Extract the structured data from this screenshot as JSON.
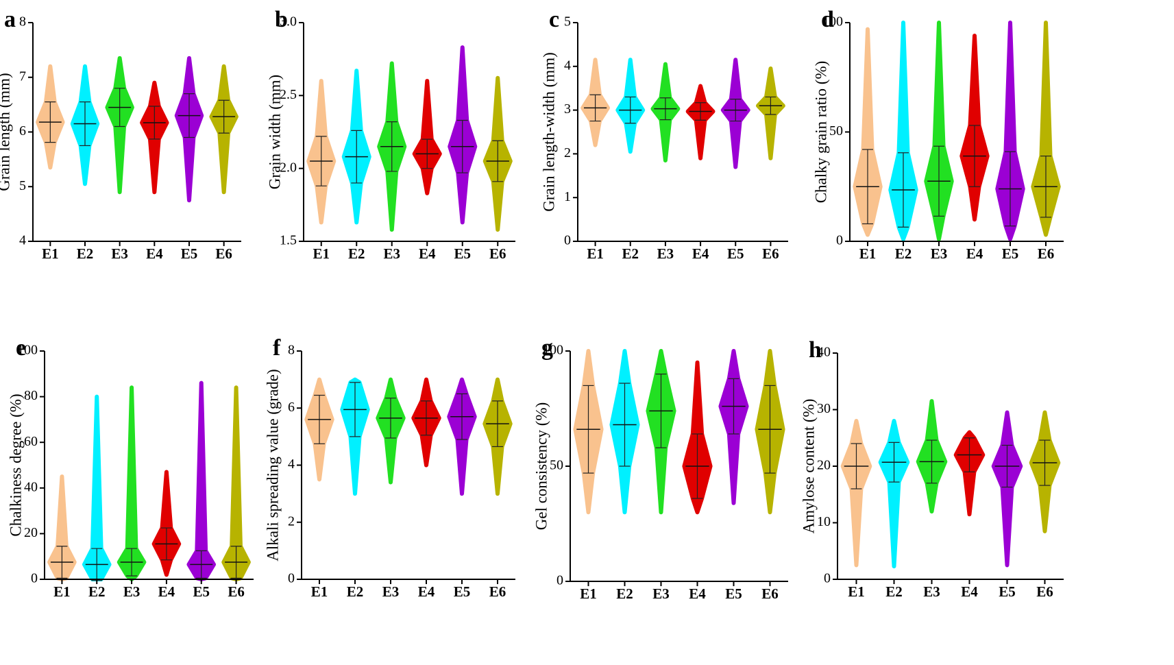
{
  "chart_data": [
    {
      "type": "swarm",
      "label": "a",
      "ylabel": "Grain length (mm)",
      "categories": [
        "E1",
        "E2",
        "E3",
        "E4",
        "E5",
        "E6"
      ],
      "colors": [
        "#f9c28e",
        "#00f0ff",
        "#22e022",
        "#e00000",
        "#9b00d4",
        "#b7b300"
      ],
      "ylim": [
        4,
        8
      ],
      "yticks": [
        4,
        5,
        6,
        7,
        8
      ],
      "values": [
        6.18,
        6.15,
        6.45,
        6.17,
        6.3,
        6.28
      ],
      "errors": [
        0.37,
        0.4,
        0.35,
        0.3,
        0.4,
        0.3
      ],
      "min": [
        5.35,
        5.05,
        4.9,
        4.9,
        4.75,
        4.9
      ],
      "max": [
        7.2,
        7.2,
        7.35,
        6.9,
        7.35,
        7.2
      ]
    },
    {
      "type": "swarm",
      "label": "b",
      "ylabel": "Grain width (mm)",
      "categories": [
        "E1",
        "E2",
        "E3",
        "E4",
        "E5",
        "E6"
      ],
      "colors": [
        "#f9c28e",
        "#00f0ff",
        "#22e022",
        "#e00000",
        "#9b00d4",
        "#b7b300"
      ],
      "ylim": [
        1.5,
        3.0
      ],
      "yticks": [
        {
          "value": 1.5,
          "label": "1.5"
        },
        {
          "value": 2.0,
          "label": "2.0"
        },
        {
          "value": 2.5,
          "label": "2.5"
        },
        {
          "value": 3.0,
          "label": "3.0"
        }
      ],
      "values": [
        2.05,
        2.08,
        2.15,
        2.1,
        2.15,
        2.05
      ],
      "errors": [
        0.17,
        0.18,
        0.17,
        0.1,
        0.18,
        0.14
      ],
      "min": [
        1.63,
        1.63,
        1.58,
        1.83,
        1.63,
        1.58
      ],
      "max": [
        2.6,
        2.67,
        2.72,
        2.6,
        2.83,
        2.62
      ]
    },
    {
      "type": "swarm",
      "label": "c",
      "ylabel": "Grain length-width (mm)",
      "categories": [
        "E1",
        "E2",
        "E3",
        "E4",
        "E5",
        "E6"
      ],
      "colors": [
        "#f9c28e",
        "#00f0ff",
        "#22e022",
        "#e00000",
        "#9b00d4",
        "#b7b300"
      ],
      "ylim": [
        0,
        5
      ],
      "yticks": [
        0,
        1,
        2,
        3,
        4,
        5
      ],
      "values": [
        3.05,
        3.0,
        3.03,
        2.97,
        3.0,
        3.1
      ],
      "errors": [
        0.3,
        0.3,
        0.25,
        0.2,
        0.25,
        0.2
      ],
      "min": [
        2.2,
        2.05,
        1.85,
        1.9,
        1.7,
        1.9
      ],
      "max": [
        4.15,
        4.15,
        4.05,
        3.55,
        4.15,
        3.95
      ]
    },
    {
      "type": "swarm",
      "label": "d",
      "ylabel": "Chalky grain ratio (%)",
      "categories": [
        "E1",
        "E2",
        "E3",
        "E4",
        "E5",
        "E6"
      ],
      "colors": [
        "#f9c28e",
        "#00f0ff",
        "#22e022",
        "#e00000",
        "#9b00d4",
        "#b7b300"
      ],
      "ylim": [
        0,
        100
      ],
      "yticks": [
        0,
        50,
        100
      ],
      "values": [
        25,
        23.5,
        27.5,
        39,
        24,
        25
      ],
      "errors": [
        17,
        17,
        16,
        14,
        17,
        14
      ],
      "min": [
        3,
        1,
        1,
        10,
        1,
        3
      ],
      "max": [
        97,
        100,
        100,
        94,
        100,
        100
      ]
    },
    {
      "type": "swarm",
      "label": "e",
      "ylabel": "Chalkiness degree (%)",
      "categories": [
        "E1",
        "E2",
        "E3",
        "E4",
        "E5",
        "E6"
      ],
      "colors": [
        "#f9c28e",
        "#00f0ff",
        "#22e022",
        "#e00000",
        "#9b00d4",
        "#b7b300"
      ],
      "ylim": [
        0,
        100
      ],
      "yticks": [
        0,
        20,
        40,
        60,
        80,
        100
      ],
      "values": [
        7.5,
        6.5,
        7.5,
        15.5,
        6.5,
        7.5
      ],
      "errors": [
        7,
        7,
        6,
        7,
        6,
        7
      ],
      "min": [
        0,
        0,
        0,
        2,
        0,
        0
      ],
      "max": [
        45,
        80,
        84,
        47,
        86,
        84
      ]
    },
    {
      "type": "swarm",
      "label": "f",
      "ylabel": "Alkali spreading value (grade)",
      "categories": [
        "E1",
        "E2",
        "E3",
        "E4",
        "E5",
        "E6"
      ],
      "colors": [
        "#f9c28e",
        "#00f0ff",
        "#22e022",
        "#e00000",
        "#9b00d4",
        "#b7b300"
      ],
      "ylim": [
        0,
        8
      ],
      "yticks": [
        0,
        2,
        4,
        6,
        8
      ],
      "values": [
        5.6,
        5.95,
        5.65,
        5.65,
        5.7,
        5.45
      ],
      "errors": [
        0.85,
        0.95,
        0.7,
        0.6,
        0.8,
        0.8
      ],
      "min": [
        3.5,
        3,
        3.4,
        4,
        3,
        3
      ],
      "max": [
        7,
        7,
        7,
        7,
        7,
        7
      ]
    },
    {
      "type": "swarm",
      "label": "g",
      "ylabel": "Gel consistency (%)",
      "categories": [
        "E1",
        "E2",
        "E3",
        "E4",
        "E5",
        "E6"
      ],
      "colors": [
        "#f9c28e",
        "#00f0ff",
        "#22e022",
        "#e00000",
        "#9b00d4",
        "#b7b300"
      ],
      "ylim": [
        0,
        100
      ],
      "yticks": [
        0,
        50,
        100
      ],
      "values": [
        66,
        68,
        74,
        50,
        76,
        66
      ],
      "errors": [
        19,
        18,
        16,
        14,
        12,
        19
      ],
      "min": [
        30,
        30,
        30,
        30,
        34,
        30
      ],
      "max": [
        100,
        100,
        100,
        95,
        100,
        100
      ]
    },
    {
      "type": "swarm",
      "label": "h",
      "ylabel": "Amylose content (%)",
      "categories": [
        "E1",
        "E2",
        "E3",
        "E4",
        "E5",
        "E6"
      ],
      "colors": [
        "#f9c28e",
        "#00f0ff",
        "#22e022",
        "#e00000",
        "#9b00d4",
        "#b7b300"
      ],
      "ylim": [
        0,
        40
      ],
      "yticks": [
        0,
        10,
        20,
        30,
        40
      ],
      "values": [
        20,
        20.7,
        20.8,
        22,
        20,
        20.6
      ],
      "errors": [
        4,
        3.5,
        3.8,
        3,
        3.7,
        4
      ],
      "min": [
        2.5,
        2.3,
        12,
        11.5,
        2.5,
        8.5
      ],
      "max": [
        28,
        28,
        31.5,
        26,
        29.5,
        29.5
      ]
    }
  ]
}
